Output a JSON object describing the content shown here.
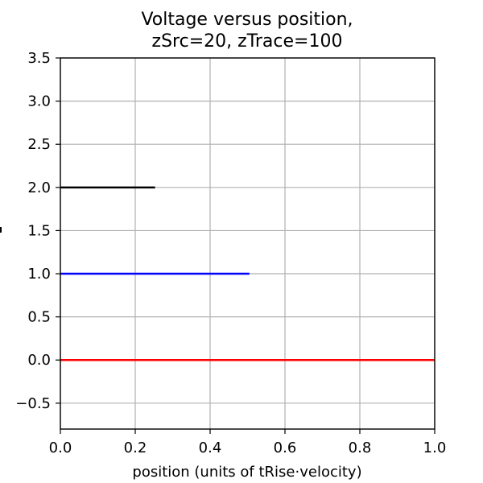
{
  "chart_data": {
    "type": "line",
    "title_lines": [
      "Voltage versus position,",
      "zSrc=20, zTrace=100"
    ],
    "xlabel": "position (units of tRise·velocity)",
    "ylabel": "",
    "xlim": [
      0.0,
      1.0
    ],
    "ylim": [
      -0.8,
      3.5
    ],
    "xticks": [
      0.0,
      0.2,
      0.4,
      0.6,
      0.8,
      1.0
    ],
    "xtick_labels": [
      "0.0",
      "0.2",
      "0.4",
      "0.6",
      "0.8",
      "1.0"
    ],
    "yticks": [
      -0.5,
      0.0,
      0.5,
      1.0,
      1.5,
      2.0,
      2.5,
      3.0,
      3.5
    ],
    "ytick_labels": [
      "−0.5",
      "0.0",
      "0.5",
      "1.0",
      "1.5",
      "2.0",
      "2.5",
      "3.0",
      "3.5"
    ],
    "grid": true,
    "series": [
      {
        "color": "#ff0000",
        "x": [
          0.0,
          1.0
        ],
        "y": [
          0.0,
          0.0
        ]
      },
      {
        "color": "#0000ff",
        "x": [
          0.0,
          0.505
        ],
        "y": [
          1.0,
          1.0
        ]
      },
      {
        "color": "#000000",
        "x": [
          0.0,
          0.253
        ],
        "y": [
          2.0,
          2.0
        ]
      }
    ]
  }
}
